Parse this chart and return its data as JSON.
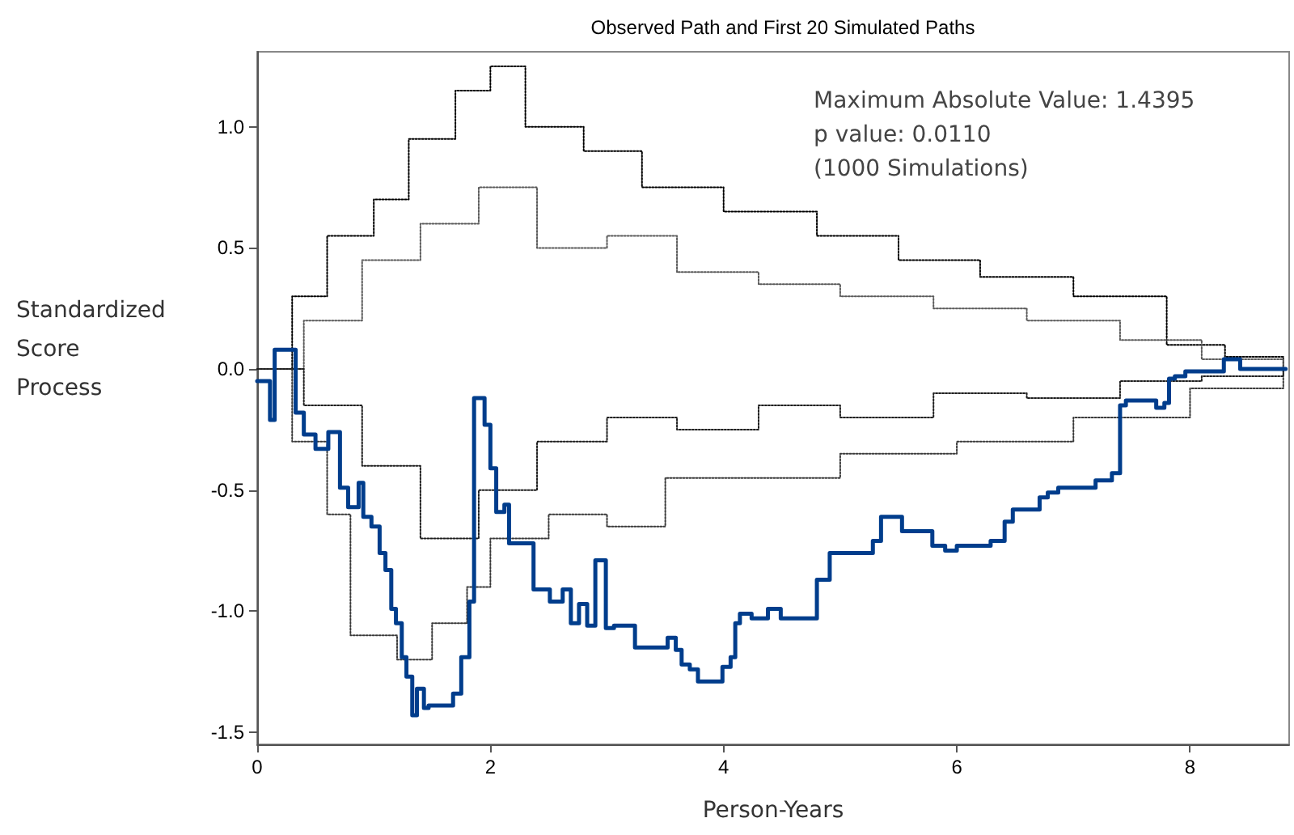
{
  "chart_data": {
    "type": "step",
    "title": "Observed Path and First 20 Simulated Paths",
    "xlabel": "Person-Years",
    "ylabel": "Standardized Score Process",
    "annotations": [
      "Maximum Absolute Value: 1.4395",
      "p value: 0.0110",
      "(1000 Simulations)"
    ],
    "xlim": [
      0,
      8.85
    ],
    "xticks": [
      0,
      2,
      4,
      6,
      8
    ],
    "ylim": [
      -1.55,
      1.31
    ],
    "yticks": [
      {
        "value": -1.5,
        "label": "-1.5"
      },
      {
        "value": -1,
        "label": "-1.0"
      },
      {
        "value": -0.5,
        "label": "-0.5"
      },
      {
        "value": 0,
        "label": "0.0"
      },
      {
        "value": 0.5,
        "label": "0.5"
      },
      {
        "value": 1,
        "label": "1.0"
      }
    ],
    "grid": false,
    "marker": "none",
    "series": [
      {
        "color": "#000000",
        "line_style": "dotted",
        "x": [
          0,
          0.3,
          0.6,
          1.0,
          1.3,
          1.7,
          2.0,
          2.3,
          2.8,
          3.3,
          4.0,
          4.8,
          5.5,
          6.2,
          7.0,
          7.8,
          8.3,
          8.8
        ],
        "values": [
          0,
          0.3,
          0.55,
          0.7,
          0.95,
          1.15,
          1.25,
          1.0,
          0.9,
          0.75,
          0.65,
          0.55,
          0.45,
          0.38,
          0.3,
          0.1,
          0.05,
          0
        ]
      },
      {
        "color": "#3a3a3a",
        "line_style": "dotted",
        "x": [
          0,
          0.3,
          0.6,
          0.8,
          1.2,
          1.5,
          1.8,
          2.0,
          2.5,
          3.0,
          3.5,
          4.0,
          5.0,
          6.0,
          7.0,
          8.0,
          8.8
        ],
        "values": [
          0,
          -0.3,
          -0.6,
          -1.1,
          -1.2,
          -1.05,
          -0.9,
          -0.7,
          -0.6,
          -0.65,
          -0.45,
          -0.45,
          -0.35,
          -0.3,
          -0.2,
          -0.08,
          0
        ]
      },
      {
        "color": "#5a5a5a",
        "line_style": "dotted",
        "x": [
          0,
          0.4,
          0.9,
          1.4,
          1.9,
          2.4,
          3.0,
          3.6,
          4.3,
          5.0,
          5.8,
          6.6,
          7.4,
          8.1,
          8.8
        ],
        "values": [
          0,
          0.2,
          0.45,
          0.6,
          0.75,
          0.5,
          0.55,
          0.4,
          0.35,
          0.3,
          0.25,
          0.2,
          0.12,
          0.04,
          0
        ]
      },
      {
        "color": "#1e1e1e",
        "line_style": "dotted",
        "x": [
          0,
          0.4,
          0.9,
          1.4,
          1.9,
          2.4,
          3.0,
          3.6,
          4.3,
          5.0,
          5.8,
          6.6,
          7.4,
          8.1,
          8.8
        ],
        "values": [
          0,
          -0.15,
          -0.4,
          -0.7,
          -0.5,
          -0.3,
          -0.2,
          -0.25,
          -0.15,
          -0.2,
          -0.1,
          -0.12,
          -0.05,
          -0.03,
          0
        ]
      },
      {
        "color": "#003d8c",
        "line_style": "solid",
        "x": [
          0,
          0.11,
          0.15,
          0.33,
          0.4,
          0.5,
          0.61,
          0.71,
          0.78,
          0.87,
          0.91,
          0.98,
          1.05,
          1.1,
          1.15,
          1.19,
          1.24,
          1.28,
          1.33,
          1.37,
          1.43,
          1.47,
          1.68,
          1.75,
          1.82,
          1.86,
          1.95,
          2.0,
          2.05,
          2.12,
          2.16,
          2.37,
          2.51,
          2.62,
          2.69,
          2.76,
          2.83,
          2.9,
          2.99,
          3.06,
          3.24,
          3.52,
          3.59,
          3.64,
          3.71,
          3.78,
          3.99,
          4.06,
          4.1,
          4.14,
          4.24,
          4.38,
          4.49,
          4.8,
          4.91,
          5.28,
          5.35,
          5.53,
          5.79,
          5.9,
          6.0,
          6.29,
          6.41,
          6.48,
          6.71,
          6.78,
          6.87,
          7.19,
          7.33,
          7.4,
          7.45,
          7.71,
          7.78,
          7.82,
          7.87,
          7.96,
          8.29,
          8.43,
          8.82
        ],
        "values": [
          -0.05,
          -0.21,
          0.08,
          -0.18,
          -0.27,
          -0.33,
          -0.26,
          -0.49,
          -0.57,
          -0.47,
          -0.61,
          -0.65,
          -0.76,
          -0.83,
          -0.99,
          -1.05,
          -1.19,
          -1.27,
          -1.43,
          -1.32,
          -1.4,
          -1.39,
          -1.34,
          -1.19,
          -0.96,
          -0.12,
          -0.23,
          -0.41,
          -0.59,
          -0.56,
          -0.72,
          -0.91,
          -0.96,
          -0.91,
          -1.05,
          -0.97,
          -1.06,
          -0.79,
          -1.07,
          -1.06,
          -1.15,
          -1.11,
          -1.16,
          -1.22,
          -1.24,
          -1.29,
          -1.23,
          -1.19,
          -1.05,
          -1.01,
          -1.03,
          -0.99,
          -1.03,
          -0.87,
          -0.76,
          -0.71,
          -0.61,
          -0.67,
          -0.73,
          -0.75,
          -0.73,
          -0.71,
          -0.63,
          -0.58,
          -0.53,
          -0.51,
          -0.49,
          -0.46,
          -0.43,
          -0.15,
          -0.13,
          -0.16,
          -0.14,
          -0.04,
          -0.03,
          -0.01,
          0.04,
          0,
          0
        ]
      }
    ]
  }
}
